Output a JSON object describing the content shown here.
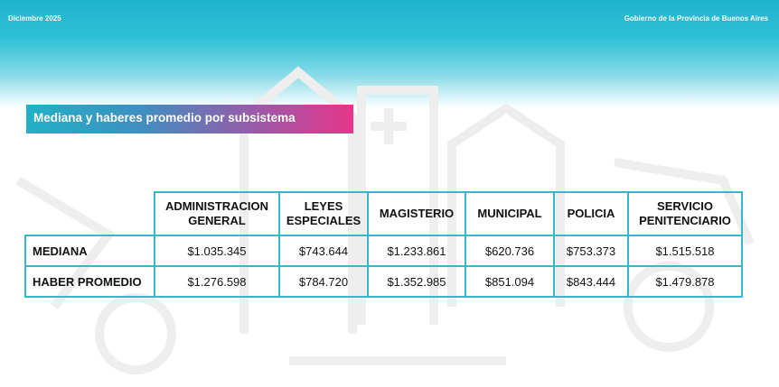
{
  "header": {
    "date": "Diciembre 2025",
    "organization": "Gobierno de la Provincia de Buenos Aires"
  },
  "section_title": "Mediana y haberes promedio por subsistema",
  "colors": {
    "header_teal": "#1fb3cc",
    "table_border": "#35b7cc",
    "title_gradient_start": "#21b1c6",
    "title_gradient_end": "#e6368a"
  },
  "table": {
    "columns": [
      {
        "line1": "ADMINISTRACION",
        "line2": "GENERAL"
      },
      {
        "line1": "LEYES",
        "line2": "ESPECIALES"
      },
      {
        "line1": "MAGISTERIO",
        "line2": ""
      },
      {
        "line1": "MUNICIPAL",
        "line2": ""
      },
      {
        "line1": "POLICIA",
        "line2": ""
      },
      {
        "line1": "SERVICIO",
        "line2": "PENITENCIARIO"
      }
    ],
    "rows": [
      {
        "label": "MEDIANA",
        "values": [
          "$1.035.345",
          "$743.644",
          "$1.233.861",
          "$620.736",
          "$753.373",
          "$1.515.518"
        ]
      },
      {
        "label": "HABER PROMEDIO",
        "values": [
          "$1.276.598",
          "$784.720",
          "$1.352.985",
          "$851.094",
          "$843.444",
          "$1.479.878"
        ]
      }
    ]
  }
}
